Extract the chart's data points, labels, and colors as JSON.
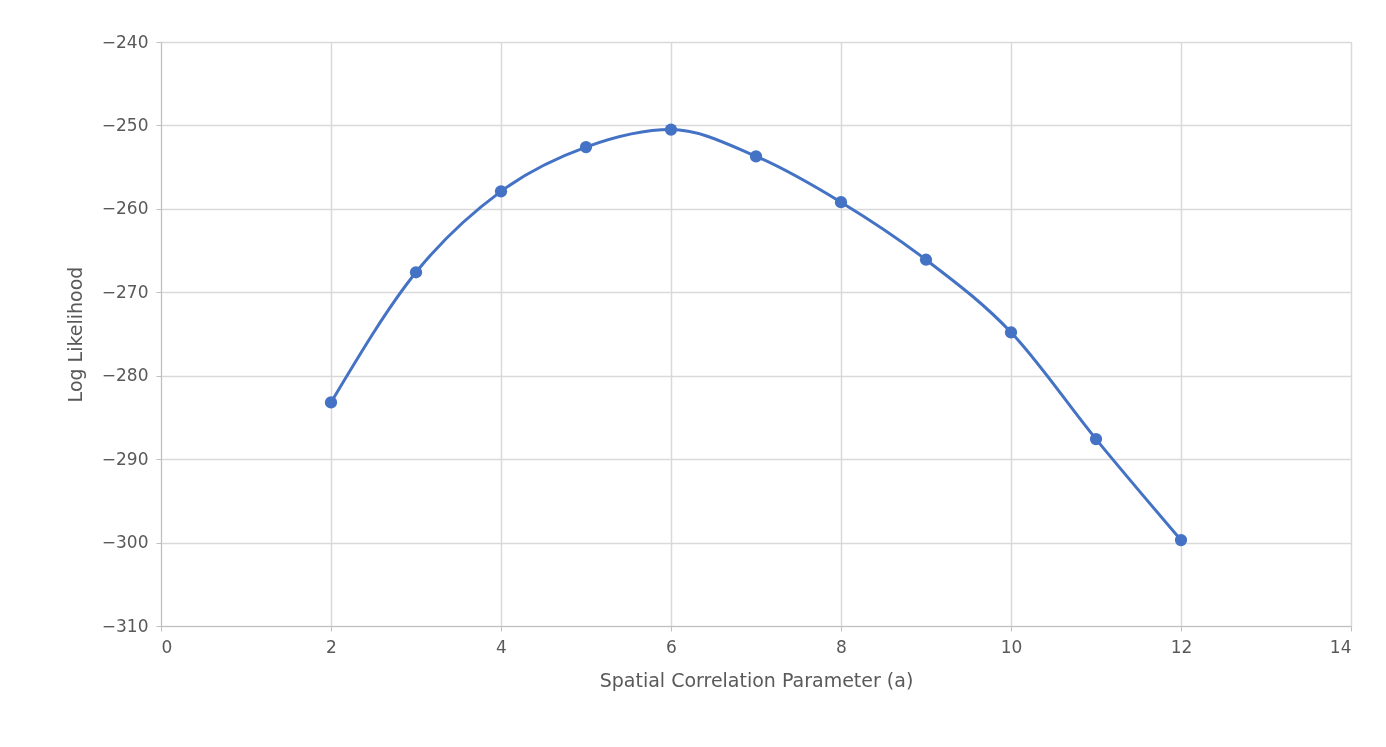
{
  "chart_data": {
    "type": "line",
    "xlabel": "Spatial Correlation Parameter (a)",
    "ylabel": "Log Likelihood",
    "x": [
      2,
      3,
      4,
      5,
      6,
      7,
      8,
      9,
      10,
      11,
      12
    ],
    "series": [
      {
        "color": "#4472c4",
        "values": [
          -283.2,
          -267.6,
          -257.9,
          -252.6,
          -250.5,
          -253.7,
          -259.2,
          -266.1,
          -274.8,
          -287.6,
          -299.7
        ]
      }
    ],
    "xlim": [
      0,
      14
    ],
    "xticks": [
      0,
      2,
      4,
      6,
      8,
      10,
      12,
      14
    ],
    "ylim": [
      -310,
      -240
    ],
    "yticks": [
      -310,
      -300,
      -290,
      -280,
      -270,
      -260,
      -250,
      -240
    ],
    "grid": true,
    "marker": "circle",
    "line_style": "solid"
  }
}
